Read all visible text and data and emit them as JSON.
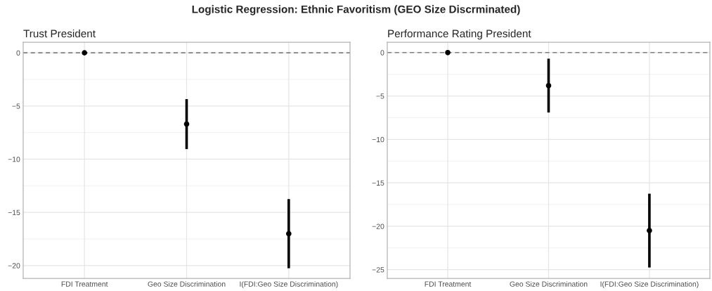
{
  "chart_data": [
    {
      "type": "scatter",
      "title": "Trust President",
      "annotations": [
        "Logistic Regression: Ethnic Favoritism (GEO Size Discrminated)"
      ],
      "categories": [
        "FDI Treatment",
        "Geo Size Discrimination",
        "I(FDI:Geo Size Discrimination)"
      ],
      "values": [
        0,
        -6.7,
        -17.0
      ],
      "errors": [
        null,
        2.35,
        3.25
      ],
      "color": "#000000",
      "ylim": [
        -21.2,
        1.0
      ],
      "yticks": [
        0,
        -5,
        -10,
        -15,
        -20
      ],
      "grid": true,
      "marker": "circle",
      "ref_lines": [
        {
          "axis": "y",
          "value": 0,
          "color": "#808080",
          "line_style": "dashed"
        }
      ]
    },
    {
      "type": "scatter",
      "title": "Performance Rating President",
      "categories": [
        "FDI Treatment",
        "Geo Size Discrimination",
        "I(FDI:Geo Size Discrimination)"
      ],
      "values": [
        0,
        -3.8,
        -20.5
      ],
      "errors": [
        null,
        3.1,
        4.25
      ],
      "color": "#000000",
      "ylim": [
        -26.0,
        1.2
      ],
      "yticks": [
        0,
        -5,
        -10,
        -15,
        -20,
        -25
      ],
      "grid": true,
      "marker": "circle",
      "ref_lines": [
        {
          "axis": "y",
          "value": 0,
          "color": "#808080",
          "line_style": "dashed"
        }
      ]
    }
  ]
}
